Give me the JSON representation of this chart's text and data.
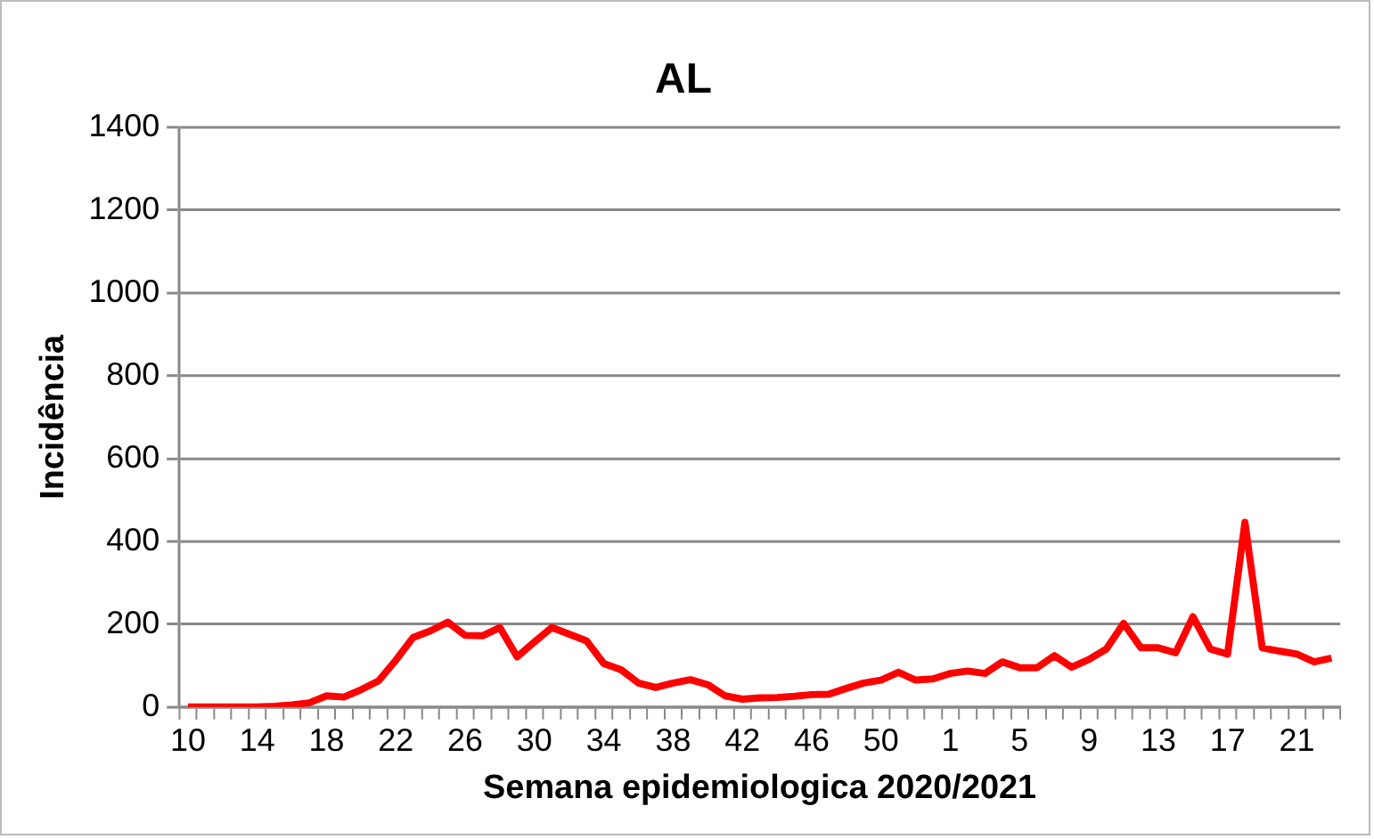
{
  "chart_data": {
    "type": "line",
    "title": "AL",
    "xlabel": "Semana epidemiologica 2020/2021",
    "ylabel": "Incidência",
    "categories": [
      "10",
      null,
      null,
      null,
      "14",
      null,
      null,
      null,
      "18",
      null,
      null,
      null,
      "22",
      null,
      null,
      null,
      "26",
      null,
      null,
      null,
      "30",
      null,
      null,
      null,
      "34",
      null,
      null,
      null,
      "38",
      null,
      null,
      null,
      "42",
      null,
      null,
      null,
      "46",
      null,
      null,
      null,
      "50",
      null,
      null,
      null,
      "1",
      null,
      null,
      null,
      "5",
      null,
      null,
      null,
      "9",
      null,
      null,
      null,
      "13",
      null,
      null,
      null,
      "17",
      null,
      null,
      null,
      "21",
      null,
      null
    ],
    "series": [
      {
        "color": "#ff0000",
        "values": [
          0,
          0,
          0,
          0,
          0,
          2,
          5,
          10,
          27,
          24,
          42,
          63,
          113,
          168,
          184,
          205,
          173,
          172,
          192,
          121,
          157,
          192,
          176,
          160,
          105,
          90,
          58,
          47,
          58,
          66,
          54,
          27,
          19,
          22,
          23,
          26,
          30,
          31,
          45,
          58,
          65,
          84,
          65,
          68,
          81,
          87,
          81,
          109,
          95,
          95,
          124,
          96,
          115,
          140,
          202,
          143,
          143,
          131,
          218,
          140,
          128,
          446,
          143,
          135,
          128,
          109,
          118
        ]
      }
    ],
    "ylim": [
      0,
      1400
    ],
    "yticks": [
      0,
      200,
      400,
      600,
      800,
      1000,
      1200,
      1400
    ],
    "grid": "y",
    "legend": false,
    "marker": "none",
    "line_style": "solid"
  }
}
